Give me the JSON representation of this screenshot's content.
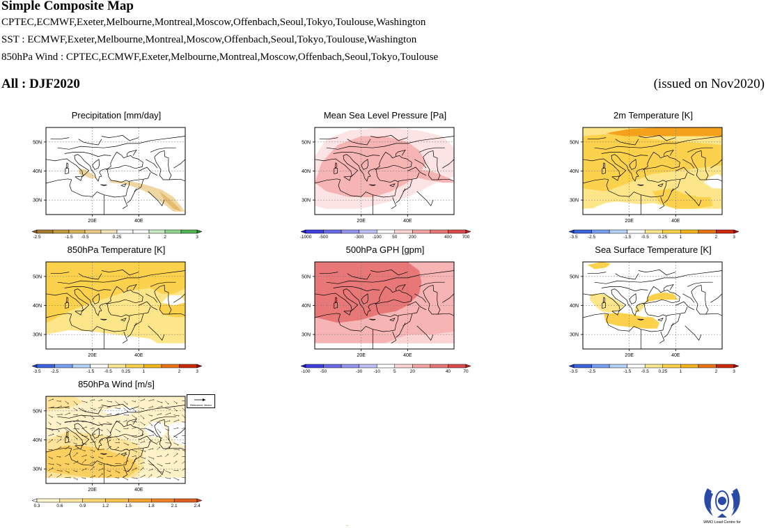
{
  "header": {
    "title": "Simple Composite Map",
    "precip_models": "CPTEC,ECMWF,Exeter,Melbourne,Montreal,Moscow,Offenbach,Seoul,Tokyo,Toulouse,Washington",
    "sst_models": "SST : ECMWF,Exeter,Melbourne,Montreal,Moscow,Offenbach,Seoul,Tokyo,Toulouse,Washington",
    "wind_models": "850hPa Wind : CPTEC,ECMWF,Exeter,Melbourne,Montreal,Moscow,Offenbach,Seoul,Tokyo,Toulouse",
    "season": "All : DJF2020",
    "issued": "(issued on Nov2020)"
  },
  "axes": {
    "lat_labels": [
      "50N",
      "40N",
      "30N"
    ],
    "lon_labels": [
      "20E",
      "40E"
    ]
  },
  "panels": [
    {
      "id": "precip",
      "title": "Precipitation [mm/day]",
      "palette": "brown-green",
      "levels": [
        "-2.5",
        "-1.5",
        "-0.5",
        "0.25",
        "1",
        "2",
        "3"
      ],
      "colors": [
        "#8c5a1e",
        "#a87a2e",
        "#c49a3e",
        "#d8b45c",
        "#e8cc86",
        "#f4e4bc",
        "#ffffff",
        "#ffffff",
        "#c8ecc8",
        "#8fd48f",
        "#52b452",
        "#1e8c1e"
      ]
    },
    {
      "id": "mslp",
      "title": "Mean Sea Level Pressure [Pa]",
      "palette": "blue-red",
      "levels": [
        "-1000",
        "-500",
        "-300",
        "-100",
        "50",
        "200",
        "400",
        "700"
      ],
      "colors": [
        "#1a1acc",
        "#4040e0",
        "#6a6ae8",
        "#9696f0",
        "#c0c0f8",
        "#ffffff",
        "#ffd6d6",
        "#f4a6a6",
        "#e87878",
        "#dc4c4c",
        "#c81e1e"
      ]
    },
    {
      "id": "t2m",
      "title": "2m Temperature [K]",
      "palette": "blue-orange",
      "levels": [
        "-3.5",
        "-2.5",
        "-1.5",
        "-0.5",
        "0.25",
        "1",
        "2",
        "3"
      ],
      "colors": [
        "#1e3cc8",
        "#3c64dc",
        "#78a0f0",
        "#b4d2fa",
        "#ffffff",
        "#ffe890",
        "#fcd24c",
        "#f4b41c",
        "#e87414",
        "#cc2a0a",
        "#a00a0a"
      ]
    },
    {
      "id": "t850",
      "title": "850hPa Temperature [K]",
      "palette": "blue-orange",
      "levels": [
        "-3.5",
        "-2.5",
        "-1.5",
        "-0.5",
        "0.25",
        "1",
        "2",
        "3"
      ],
      "colors": [
        "#1e3cc8",
        "#3c64dc",
        "#78a0f0",
        "#b4d2fa",
        "#ffffff",
        "#ffe890",
        "#fcd24c",
        "#f4b41c",
        "#e87414",
        "#cc2a0a",
        "#a00a0a"
      ]
    },
    {
      "id": "gph500",
      "title": "500hPa GPH [gpm]",
      "palette": "blue-red",
      "levels": [
        "-100",
        "-50",
        "-30",
        "-10",
        "5",
        "20",
        "40",
        "70"
      ],
      "colors": [
        "#1a1acc",
        "#4040e0",
        "#6a6ae8",
        "#9696f0",
        "#c0c0f8",
        "#ffffff",
        "#ffd6d6",
        "#f4a6a6",
        "#e87878",
        "#dc4c4c",
        "#c81e1e"
      ]
    },
    {
      "id": "sst",
      "title": "Sea Surface Temperature [K]",
      "palette": "blue-orange",
      "levels": [
        "-3.5",
        "-2.5",
        "-1.5",
        "-0.5",
        "0.25",
        "1",
        "2",
        "3"
      ],
      "colors": [
        "#1e3cc8",
        "#3c64dc",
        "#78a0f0",
        "#b4d2fa",
        "#ffffff",
        "#ffe890",
        "#fcd24c",
        "#f4b41c",
        "#e87414",
        "#cc2a0a",
        "#a00a0a"
      ]
    },
    {
      "id": "wind850",
      "title": "850hPa Wind [m/s]",
      "palette": "white-orange",
      "levels": [
        "0.3",
        "0.6",
        "0.9",
        "1.2",
        "1.5",
        "1.8",
        "2.1",
        "2.4"
      ],
      "colors": [
        "#ffffff",
        "#fff6d0",
        "#ffe8a0",
        "#ffd870",
        "#fcc44c",
        "#f8a430",
        "#f08428",
        "#e06020",
        "#d04418"
      ]
    }
  ],
  "reference_vector": {
    "value": "1",
    "label": "Reference Vector"
  },
  "logo": {
    "label": "WMO Lead Centre for"
  }
}
